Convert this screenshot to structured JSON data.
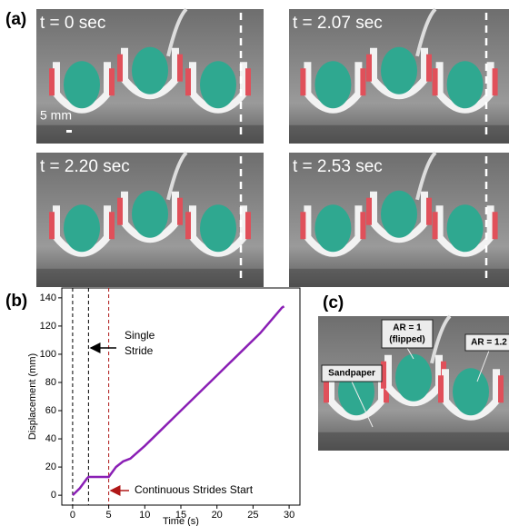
{
  "panel_a": {
    "label": "(a)",
    "scale_bar": "5 mm",
    "frames": [
      {
        "caption": "t = 0 sec"
      },
      {
        "caption": "t = 2.07 sec"
      },
      {
        "caption": "t = 2.20 sec"
      },
      {
        "caption": "t = 2.53 sec"
      }
    ]
  },
  "panel_c": {
    "label": "(c)",
    "callouts": [
      {
        "lines": [
          "AR = 1",
          "(flipped)"
        ]
      },
      {
        "lines": [
          "AR = 1.2"
        ]
      },
      {
        "lines": [
          "Sandpaper"
        ]
      }
    ]
  },
  "chart_data": {
    "type": "line",
    "panel_label": "(b)",
    "x_label": "Time (s)",
    "y_label": "Displacement (mm)",
    "x": [
      0,
      1,
      2,
      2.2,
      3,
      4,
      5,
      6,
      7,
      8,
      10,
      12,
      14,
      16,
      18,
      20,
      22,
      24,
      26,
      28,
      29,
      29.3
    ],
    "values": [
      0,
      5,
      12,
      13,
      13,
      13,
      13,
      20,
      24,
      26,
      35,
      45,
      55,
      65,
      75,
      85,
      95,
      105,
      115,
      127,
      133,
      134
    ],
    "color": "#8a1fb5",
    "xlim": [
      -1.5,
      31.5
    ],
    "ylim": [
      -7,
      147
    ],
    "xticks": [
      0,
      5,
      10,
      15,
      20,
      25,
      30
    ],
    "yticks": [
      0,
      20,
      40,
      60,
      80,
      100,
      120,
      140
    ],
    "vlines": [
      0,
      2.2,
      5
    ],
    "annotations": [
      {
        "lines": [
          "Single",
          "Stride"
        ]
      },
      {
        "lines": [
          "Continuous Strides Start"
        ]
      }
    ]
  }
}
